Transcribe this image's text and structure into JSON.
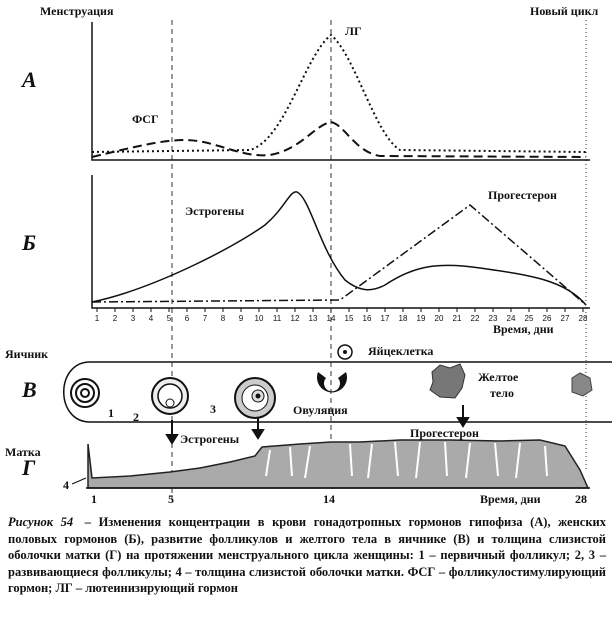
{
  "panel_labels": [
    "А",
    "Б",
    "В",
    "Г"
  ],
  "hormones_top": {
    "left_label": "Менструация",
    "right_label": "Новый цикл",
    "lh": "ЛГ",
    "fsh": "ФСГ"
  },
  "hormones_sex": {
    "estrogens": "Эстрогены",
    "progesterone": "Прогестерон"
  },
  "time_axis": {
    "ticks": [
      1,
      2,
      3,
      4,
      5,
      6,
      7,
      8,
      9,
      10,
      11,
      12,
      13,
      14,
      15,
      16,
      17,
      18,
      19,
      20,
      21,
      22,
      23,
      24,
      25,
      26,
      27,
      28
    ],
    "label": "Время, дни"
  },
  "ovary": {
    "title": "Яичник",
    "egg": "Яйцеклетка",
    "ovulation": "Овуляция",
    "corpus_luteum": [
      "Желтое",
      "тело"
    ],
    "follicle_numbers": [
      "1",
      "2",
      "3"
    ],
    "estrogens": "Эстрогены",
    "progesterone": "Прогестерон"
  },
  "uterus": {
    "title": "Матка",
    "number": "4",
    "day_labels": [
      "1",
      "5",
      "14",
      "28"
    ],
    "time_label": "Время, дни"
  },
  "caption": {
    "label": "Рисунок 54",
    "text": "– Изменения концентрации в крови гонадотропных гормонов гипофиза (А), женских половых гормонов (Б), развитие фолликулов и желтого тела в яичнике (В) и толщина слизистой оболочки матки (Г) на протяжении менструального цикла женщины: 1 – первичный фолликул; 2, 3 – развивающиеся фолликулы; 4 – толщина слизистой оболочки матки. ФСГ – фолликулостимулирующий гормон; ЛГ – лютеинизирующий гормон"
  }
}
